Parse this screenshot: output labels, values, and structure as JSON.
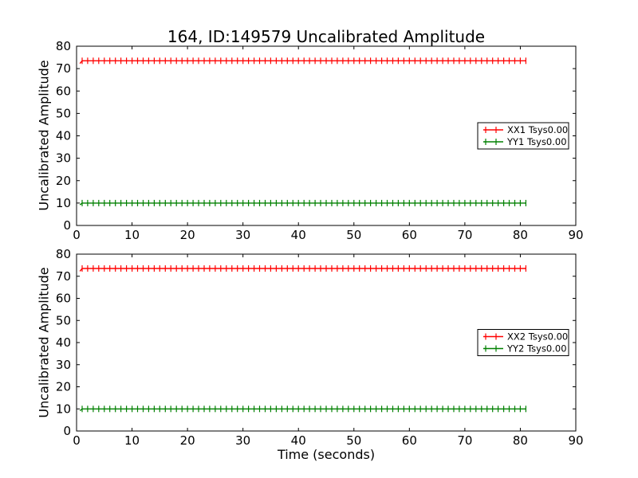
{
  "figure": {
    "title": "164, ID:149579 Uncalibrated Amplitude",
    "background_color": "#ffffff",
    "axes_color": "#000000"
  },
  "chart_data": [
    {
      "type": "line",
      "plot_style": "errorbar",
      "position": "top",
      "title": "",
      "xlabel": "",
      "ylabel": "Uncalibrated Amplitude",
      "xlim": [
        0,
        90
      ],
      "ylim": [
        0,
        80
      ],
      "xticks": [
        0,
        10,
        20,
        30,
        40,
        50,
        60,
        70,
        80,
        90
      ],
      "yticks": [
        0,
        10,
        20,
        30,
        40,
        50,
        60,
        70,
        80
      ],
      "grid": false,
      "legend": {
        "position": "center-right",
        "entries": [
          "XX1 Tsys0.00",
          "YY1 Tsys0.00"
        ]
      },
      "series": [
        {
          "name": "XX1 Tsys0.00",
          "color": "#ff0000",
          "marker": "vertical-tick-errorbar",
          "x_start": 1,
          "x_end": 81,
          "x_step": 1,
          "y_level": 73.5,
          "y_start": 72.3
        },
        {
          "name": "YY1 Tsys0.00",
          "color": "#008000",
          "marker": "vertical-tick-errorbar",
          "x_start": 1,
          "x_end": 81,
          "x_step": 1,
          "y_level": 10.0,
          "y_start": 9.2
        }
      ]
    },
    {
      "type": "line",
      "plot_style": "errorbar",
      "position": "bottom",
      "title": "",
      "xlabel": "Time (seconds)",
      "ylabel": "Uncalibrated Amplitude",
      "xlim": [
        0,
        90
      ],
      "ylim": [
        0,
        80
      ],
      "xticks": [
        0,
        10,
        20,
        30,
        40,
        50,
        60,
        70,
        80,
        90
      ],
      "yticks": [
        0,
        10,
        20,
        30,
        40,
        50,
        60,
        70,
        80
      ],
      "grid": false,
      "legend": {
        "position": "center-right",
        "entries": [
          "XX2 Tsys0.00",
          "YY2 Tsys0.00"
        ]
      },
      "series": [
        {
          "name": "XX2 Tsys0.00",
          "color": "#ff0000",
          "marker": "vertical-tick-errorbar",
          "x_start": 1,
          "x_end": 81,
          "x_step": 1,
          "y_level": 73.5,
          "y_start": 72.3
        },
        {
          "name": "YY2 Tsys0.00",
          "color": "#008000",
          "marker": "vertical-tick-errorbar",
          "x_start": 1,
          "x_end": 81,
          "x_step": 1,
          "y_level": 10.0,
          "y_start": 9.2
        }
      ]
    }
  ]
}
